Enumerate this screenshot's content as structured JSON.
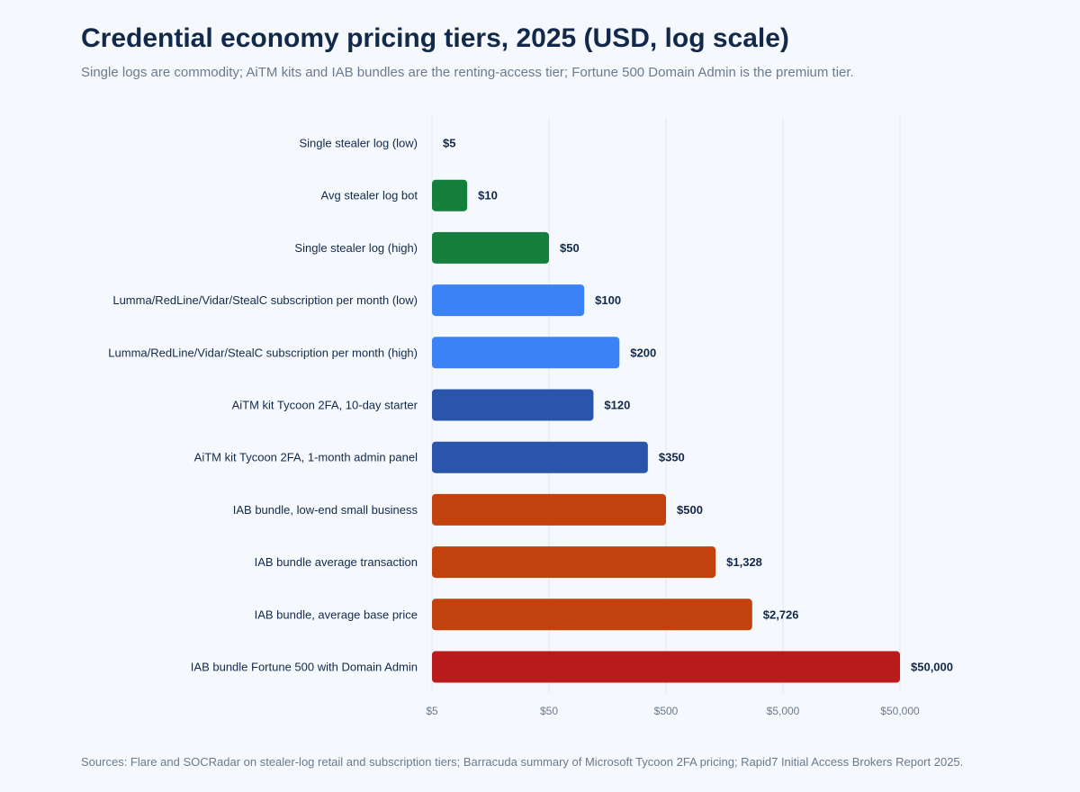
{
  "title": "Credential economy pricing tiers, 2025 (USD, log scale)",
  "subtitle": "Single logs are commodity; AiTM kits and IAB bundles are the renting-access tier; Fortune 500 Domain Admin is the premium tier.",
  "source": "Sources: Flare and SOCRadar on stealer-log retail and subscription tiers; Barracuda summary of Microsoft Tycoon 2FA pricing; Rapid7 Initial Access Brokers Report 2025.",
  "chart_data": {
    "type": "bar",
    "orientation": "horizontal",
    "x_scale": "log",
    "xlim": [
      5,
      50000
    ],
    "grid": true,
    "x_ticks": [
      5,
      50,
      500,
      5000,
      50000
    ],
    "x_tick_labels": [
      "$5",
      "$50",
      "$500",
      "$5,000",
      "$50,000"
    ],
    "categories": [
      "Single stealer log (low)",
      "Avg stealer log bot",
      "Single stealer log (high)",
      "Lumma/RedLine/Vidar/StealC subscription per month (low)",
      "Lumma/RedLine/Vidar/StealC subscription per month (high)",
      "AiTM kit Tycoon 2FA, 10-day starter",
      "AiTM kit Tycoon 2FA, 1-month admin panel",
      "IAB bundle, low-end small business",
      "IAB bundle average transaction",
      "IAB bundle, average base price",
      "IAB bundle Fortune 500 with Domain Admin"
    ],
    "values": [
      5,
      10,
      50,
      100,
      200,
      120,
      350,
      500,
      1328,
      2726,
      50000
    ],
    "value_labels": [
      "$5",
      "$10",
      "$50",
      "$100",
      "$200",
      "$120",
      "$350",
      "$500",
      "$1,328",
      "$2,726",
      "$50,000"
    ],
    "colors": [
      "#15803d",
      "#15803d",
      "#15803d",
      "#3b82f6",
      "#3b82f6",
      "#2b55aa",
      "#2b55aa",
      "#c2410c",
      "#c2410c",
      "#c2410c",
      "#b91c1c"
    ]
  }
}
